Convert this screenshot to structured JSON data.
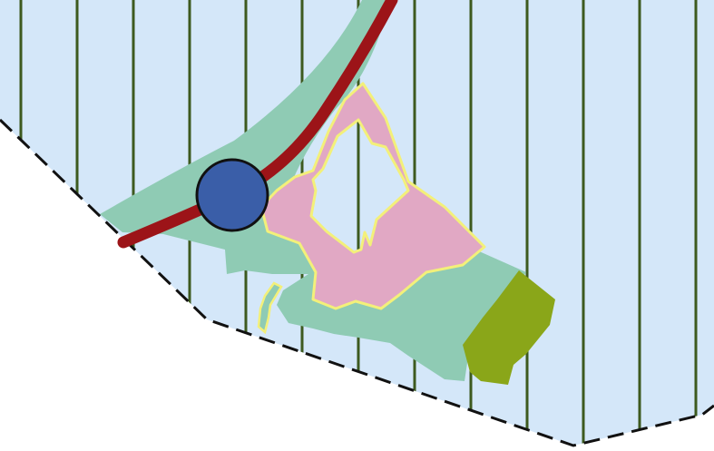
{
  "map": {
    "colors": {
      "page_background": "#ffffff",
      "region_fill": "#d4e7f9",
      "hatch_lines": "#3d5a1f",
      "boundary": "#111111",
      "zone_green": "#8fcbb4",
      "zone_pink": "#e1a8c4",
      "zone_pink_outline": "#f3f07a",
      "zone_olive": "#8aa619",
      "road": "#9c1418",
      "marker_fill": "#3a5ea8",
      "marker_outline": "#111111"
    },
    "features": [
      "hatched-region",
      "dashed-boundary",
      "green-zone",
      "pink-zone",
      "olive-zone",
      "road",
      "circle-marker"
    ]
  }
}
